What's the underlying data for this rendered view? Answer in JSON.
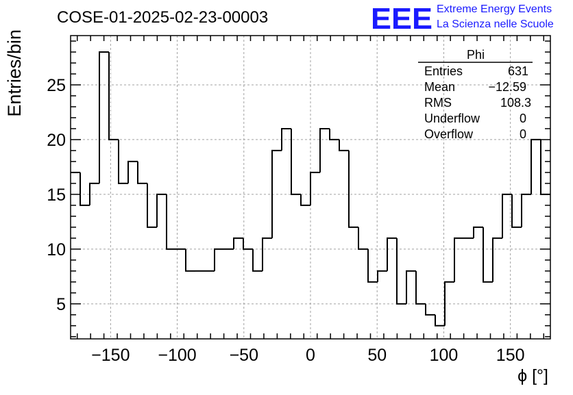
{
  "title": "COSE-01-2025-02-23-00003",
  "logo": {
    "mark": "EEE",
    "line1": "Extreme Energy Events",
    "line2": "La Scienza nelle Scuole",
    "color": "#1a1aff"
  },
  "stats": {
    "name": "Phi",
    "rows": [
      {
        "label": "Entries",
        "value": "631"
      },
      {
        "label": "Mean",
        "value": "−12.59"
      },
      {
        "label": "RMS",
        "value": "108.3"
      },
      {
        "label": "Underflow",
        "value": "0"
      },
      {
        "label": "Overflow",
        "value": "0"
      }
    ]
  },
  "chart_data": {
    "type": "histogram",
    "title": "COSE-01-2025-02-23-00003",
    "xlabel": "ϕ [°]",
    "ylabel": "Entries/bin",
    "xlim": [
      -180,
      180
    ],
    "ylim": [
      1.8,
      29.5
    ],
    "bin_width": 7.2,
    "xticks": [
      -150,
      -100,
      -50,
      0,
      50,
      100,
      150
    ],
    "xtick_labels": [
      "−150",
      "−100",
      "−50",
      "0",
      "50",
      "100",
      "150"
    ],
    "yticks": [
      5,
      10,
      15,
      20,
      25
    ],
    "ytick_labels": [
      "5",
      "10",
      "15",
      "20",
      "25"
    ],
    "grid": true,
    "values": [
      17,
      14,
      16,
      28,
      20,
      16,
      18,
      16,
      12,
      15,
      10,
      10,
      8,
      8,
      8,
      10,
      10,
      11,
      10,
      8,
      11,
      19,
      21,
      15,
      14,
      17,
      21,
      20,
      19,
      12,
      10,
      7,
      8,
      11,
      5,
      8,
      5,
      4,
      3,
      7,
      11,
      11,
      12,
      7,
      11,
      15,
      12,
      15,
      20,
      15
    ],
    "line_color": "#000000"
  }
}
